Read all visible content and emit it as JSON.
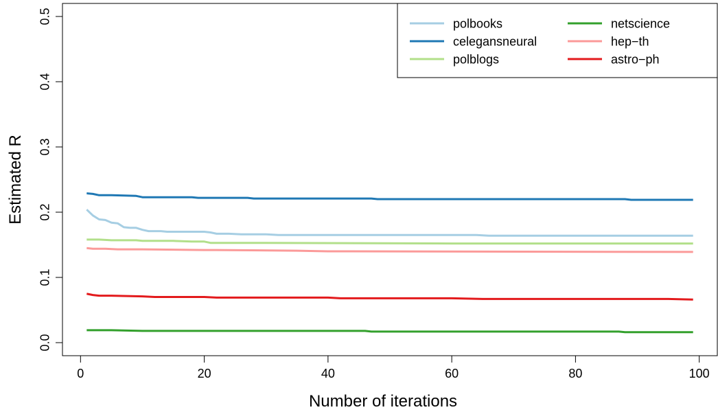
{
  "chart_data": {
    "type": "line",
    "title": "",
    "xlabel": "Number of iterations",
    "ylabel": "Estimated R",
    "xlim": [
      1,
      99
    ],
    "ylim": [
      0.0,
      0.5
    ],
    "xticks": [
      0,
      20,
      40,
      60,
      80,
      100
    ],
    "xtick_labels": [
      "0",
      "20",
      "40",
      "60",
      "80",
      "100"
    ],
    "yticks": [
      0.0,
      0.1,
      0.2,
      0.3,
      0.4,
      0.5
    ],
    "ytick_labels": [
      "0.0",
      "0.1",
      "0.2",
      "0.3",
      "0.4",
      "0.5"
    ],
    "grid": false,
    "legend_position": "top-right",
    "series": [
      {
        "name": "polbooks",
        "color": "#a6cee3",
        "points": [
          [
            1,
            0.204
          ],
          [
            2,
            0.195
          ],
          [
            3,
            0.189
          ],
          [
            4,
            0.188
          ],
          [
            5,
            0.184
          ],
          [
            6,
            0.183
          ],
          [
            7,
            0.177
          ],
          [
            8,
            0.176
          ],
          [
            9,
            0.176
          ],
          [
            10,
            0.173
          ],
          [
            11,
            0.171
          ],
          [
            13,
            0.171
          ],
          [
            14,
            0.17
          ],
          [
            20,
            0.17
          ],
          [
            21,
            0.169
          ],
          [
            22,
            0.167
          ],
          [
            24,
            0.167
          ],
          [
            26,
            0.166
          ],
          [
            30,
            0.166
          ],
          [
            32,
            0.165
          ],
          [
            50,
            0.165
          ],
          [
            64,
            0.165
          ],
          [
            66,
            0.164
          ],
          [
            99,
            0.164
          ]
        ]
      },
      {
        "name": "celegansneural",
        "color": "#1f78b4",
        "points": [
          [
            1,
            0.229
          ],
          [
            2,
            0.228
          ],
          [
            3,
            0.226
          ],
          [
            5,
            0.226
          ],
          [
            9,
            0.225
          ],
          [
            10,
            0.223
          ],
          [
            18,
            0.223
          ],
          [
            19,
            0.222
          ],
          [
            27,
            0.222
          ],
          [
            28,
            0.221
          ],
          [
            47,
            0.221
          ],
          [
            48,
            0.22
          ],
          [
            70,
            0.22
          ],
          [
            88,
            0.22
          ],
          [
            89,
            0.219
          ],
          [
            99,
            0.219
          ]
        ]
      },
      {
        "name": "polblogs",
        "color": "#b2df8a",
        "points": [
          [
            1,
            0.158
          ],
          [
            3,
            0.158
          ],
          [
            5,
            0.157
          ],
          [
            9,
            0.157
          ],
          [
            10,
            0.156
          ],
          [
            14,
            0.156
          ],
          [
            15,
            0.156
          ],
          [
            18,
            0.155
          ],
          [
            20,
            0.155
          ],
          [
            21,
            0.153
          ],
          [
            30,
            0.153
          ],
          [
            60,
            0.152
          ],
          [
            90,
            0.152
          ],
          [
            99,
            0.152
          ]
        ]
      },
      {
        "name": "netscience",
        "color": "#33a02c",
        "points": [
          [
            1,
            0.019
          ],
          [
            5,
            0.019
          ],
          [
            10,
            0.018
          ],
          [
            20,
            0.018
          ],
          [
            46,
            0.018
          ],
          [
            47,
            0.017
          ],
          [
            87,
            0.017
          ],
          [
            88,
            0.016
          ],
          [
            99,
            0.016
          ]
        ]
      },
      {
        "name": "hep−th",
        "color": "#fb9a99",
        "points": [
          [
            1,
            0.145
          ],
          [
            2,
            0.144
          ],
          [
            4,
            0.144
          ],
          [
            6,
            0.143
          ],
          [
            10,
            0.143
          ],
          [
            20,
            0.142
          ],
          [
            22,
            0.142
          ],
          [
            35,
            0.141
          ],
          [
            40,
            0.14
          ],
          [
            99,
            0.139
          ]
        ]
      },
      {
        "name": "astro−ph",
        "color": "#e31a1c",
        "points": [
          [
            1,
            0.075
          ],
          [
            2,
            0.073
          ],
          [
            3,
            0.072
          ],
          [
            5,
            0.072
          ],
          [
            10,
            0.071
          ],
          [
            12,
            0.07
          ],
          [
            20,
            0.07
          ],
          [
            22,
            0.069
          ],
          [
            40,
            0.069
          ],
          [
            42,
            0.068
          ],
          [
            60,
            0.068
          ],
          [
            65,
            0.067
          ],
          [
            95,
            0.067
          ],
          [
            99,
            0.066
          ]
        ]
      }
    ]
  }
}
